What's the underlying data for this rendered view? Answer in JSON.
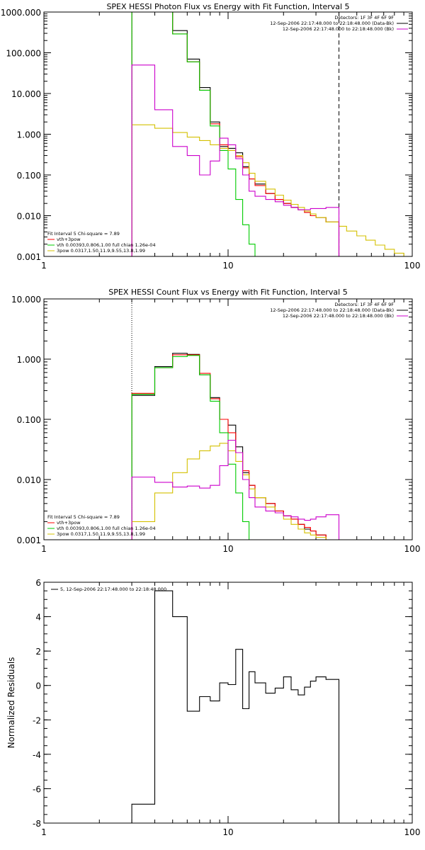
{
  "chart_data": [
    {
      "type": "line",
      "title": "SPEX HESSI Photon Flux vs Energy with Fit Function, Interval 5",
      "xlabel": "",
      "ylabel": "",
      "xscale": "log",
      "yscale": "log",
      "xlim": [
        1,
        100
      ],
      "ylim": [
        0.001,
        1000
      ],
      "x_ticks": [
        1,
        10,
        100
      ],
      "x_tick_labels": [
        "1",
        "10",
        "100"
      ],
      "y_ticks": [
        0.001,
        0.01,
        0.1,
        1,
        10,
        100,
        1000
      ],
      "y_tick_labels": [
        "0.001",
        "0.010",
        "0.100",
        "1.000",
        "10.000",
        "100.000",
        "1000.000"
      ],
      "vlines": [
        {
          "x": 3,
          "style": "dotted",
          "color": "#000000"
        },
        {
          "x": 40,
          "style": "dashed",
          "color": "#000000"
        }
      ],
      "legend_top_right": [
        {
          "label": "Detectors: 1F 3F 4F 6F 9F",
          "color": "#000000"
        },
        {
          "label": "12-Sep-2006 22:17:48.000 to 22:18:48.000 (Data-Bk)",
          "color": "#000000"
        },
        {
          "label": "12-Sep-2006 22:17:48.000 to 22:18:48.000 (Bk)",
          "color": "#cc00cc"
        }
      ],
      "legend_bottom_left": [
        {
          "label": "Fit Interval 5   Chi-square = 7.89",
          "color": "#000000"
        },
        {
          "label": "vth+3pow",
          "color": "#ff0000"
        },
        {
          "label": "vth 0.00393,0.806,1.00  full chian 1.26e-04",
          "color": "#00cc00"
        },
        {
          "label": "3pow 0.0317,1.50,11.9,9.55,13.8,1.99",
          "color": "#d4c000"
        }
      ],
      "series": [
        {
          "color": "#000000",
          "edges": [
            3,
            4,
            5,
            6,
            7,
            8,
            9,
            10,
            11,
            12,
            13,
            14,
            16,
            18,
            20,
            22,
            24,
            26,
            28,
            30,
            34,
            40
          ],
          "values": [
            1000,
            1000,
            350,
            70,
            14,
            2.0,
            0.5,
            0.45,
            0.35,
            0.16,
            0.08,
            0.06,
            0.035,
            0.025,
            0.02,
            0.016,
            0.014,
            0.012,
            0.01,
            0.009,
            0.007
          ]
        },
        {
          "color": "#ff0000",
          "edges": [
            3,
            4,
            5,
            6,
            7,
            8,
            9,
            10,
            11,
            12,
            13,
            14,
            16,
            18,
            20,
            22,
            24,
            26,
            28,
            30,
            34,
            40
          ],
          "values": [
            1000,
            1000,
            290,
            60,
            12,
            1.8,
            0.55,
            0.4,
            0.28,
            0.15,
            0.08,
            0.055,
            0.035,
            0.025,
            0.02,
            0.016,
            0.014,
            0.012,
            0.01,
            0.009,
            0.007
          ]
        },
        {
          "color": "#00cc00",
          "edges": [
            3,
            4,
            5,
            6,
            7,
            8,
            9,
            10,
            11,
            12,
            13,
            14,
            16
          ],
          "values": [
            1000,
            1000,
            290,
            60,
            12,
            1.6,
            0.4,
            0.14,
            0.025,
            0.006,
            0.002,
            0.001
          ]
        },
        {
          "color": "#d4c000",
          "edges": [
            3,
            4,
            5,
            6,
            7,
            8,
            9,
            10,
            11,
            12,
            13,
            14,
            16,
            18,
            20,
            22,
            24,
            26,
            28,
            30,
            34,
            40,
            44,
            50,
            56,
            63,
            71,
            80,
            90,
            100
          ],
          "values": [
            1.7,
            1.4,
            1.1,
            0.85,
            0.7,
            0.55,
            0.45,
            0.4,
            0.3,
            0.2,
            0.11,
            0.07,
            0.045,
            0.032,
            0.024,
            0.019,
            0.016,
            0.013,
            0.011,
            0.009,
            0.007,
            0.0055,
            0.0042,
            0.0032,
            0.0025,
            0.0019,
            0.0015,
            0.0012,
            0.001
          ]
        },
        {
          "color": "#cc00cc",
          "edges": [
            3,
            4,
            5,
            6,
            7,
            8,
            9,
            10,
            11,
            12,
            13,
            14,
            16,
            18,
            20,
            22,
            24,
            26,
            28,
            30,
            34,
            40
          ],
          "values": [
            50,
            4.0,
            0.5,
            0.3,
            0.1,
            0.22,
            0.8,
            0.55,
            0.25,
            0.1,
            0.04,
            0.03,
            0.025,
            0.022,
            0.018,
            0.016,
            0.014,
            0.014,
            0.015,
            0.015,
            0.016
          ]
        }
      ]
    },
    {
      "type": "line",
      "title": "SPEX HESSI Count Flux vs Energy with Fit Function, Interval 5",
      "xlabel": "",
      "ylabel": "",
      "xscale": "log",
      "yscale": "log",
      "xlim": [
        1,
        100
      ],
      "ylim": [
        0.001,
        10
      ],
      "x_ticks": [
        1,
        10,
        100
      ],
      "x_tick_labels": [
        "1",
        "10",
        "100"
      ],
      "y_ticks": [
        0.001,
        0.01,
        0.1,
        1,
        10
      ],
      "y_tick_labels": [
        "0.001",
        "0.010",
        "0.100",
        "1.000",
        "10.000"
      ],
      "vlines": [
        {
          "x": 3,
          "style": "dotted",
          "color": "#000000"
        }
      ],
      "legend_top_right": [
        {
          "label": "Detectors: 1F 3F 4F 6F 9F",
          "color": "#000000"
        },
        {
          "label": "12-Sep-2006 22:17:48.000 to 22:18:48.000 (Data-Bk)",
          "color": "#000000"
        },
        {
          "label": "12-Sep-2006 22:17:48.000 to 22:18:48.000 (Bk)",
          "color": "#cc00cc"
        }
      ],
      "legend_bottom_left": [
        {
          "label": "Fit Interval 5   Chi-square = 7.89",
          "color": "#000000"
        },
        {
          "label": "vth+3pow",
          "color": "#ff0000"
        },
        {
          "label": "vth 0.00393,0.806,1.00  full chian 1.26e-04",
          "color": "#00cc00"
        },
        {
          "label": "3pow 0.0317,1.50,11.9,9.55,13.8,1.99",
          "color": "#d4c000"
        }
      ],
      "series": [
        {
          "color": "#000000",
          "edges": [
            3,
            4,
            5,
            6,
            7,
            8,
            9,
            10,
            11,
            12,
            13,
            14,
            16,
            18,
            20,
            22,
            24,
            26,
            28,
            30,
            34,
            40
          ],
          "values": [
            0.25,
            0.75,
            1.25,
            1.2,
            0.55,
            0.23,
            0.1,
            0.08,
            0.035,
            0.013,
            0.008,
            0.005,
            0.004,
            0.003,
            0.0025,
            0.0022,
            0.0018,
            0.0015,
            0.0014,
            0.0012,
            0.001
          ]
        },
        {
          "color": "#ff0000",
          "edges": [
            3,
            4,
            5,
            6,
            7,
            8,
            9,
            10,
            11,
            12,
            13,
            14,
            16,
            18,
            20,
            22,
            24,
            26,
            28,
            30,
            34,
            40
          ],
          "values": [
            0.27,
            0.72,
            1.18,
            1.18,
            0.58,
            0.22,
            0.1,
            0.06,
            0.028,
            0.014,
            0.008,
            0.005,
            0.004,
            0.003,
            0.0025,
            0.0022,
            0.0018,
            0.0016,
            0.0014,
            0.0012,
            0.001
          ]
        },
        {
          "color": "#00cc00",
          "edges": [
            3,
            4,
            5,
            6,
            7,
            8,
            9,
            10,
            11,
            12,
            13,
            14
          ],
          "values": [
            0.26,
            0.72,
            1.1,
            1.15,
            0.55,
            0.2,
            0.06,
            0.018,
            0.006,
            0.002,
            0.001
          ]
        },
        {
          "color": "#d4c000",
          "edges": [
            3,
            4,
            5,
            6,
            7,
            8,
            9,
            10,
            11,
            12,
            13,
            14,
            16,
            18,
            20,
            22,
            24,
            26,
            28,
            30,
            34,
            40
          ],
          "values": [
            0.002,
            0.006,
            0.013,
            0.022,
            0.03,
            0.036,
            0.04,
            0.03,
            0.02,
            0.012,
            0.007,
            0.005,
            0.0035,
            0.0028,
            0.0022,
            0.0018,
            0.0015,
            0.0013,
            0.0012,
            0.0011,
            0.001
          ]
        },
        {
          "color": "#cc00cc",
          "edges": [
            3,
            4,
            5,
            6,
            7,
            8,
            9,
            10,
            11,
            12,
            13,
            14,
            16,
            18,
            20,
            22,
            24,
            26,
            28,
            30,
            34,
            40
          ],
          "values": [
            0.011,
            0.009,
            0.0075,
            0.0078,
            0.0072,
            0.008,
            0.017,
            0.045,
            0.028,
            0.01,
            0.005,
            0.0035,
            0.003,
            0.0028,
            0.0025,
            0.0024,
            0.0022,
            0.0021,
            0.0022,
            0.0024,
            0.0026
          ]
        }
      ]
    },
    {
      "type": "line",
      "title": "",
      "xlabel": "",
      "ylabel": "Normalized Residuals",
      "xscale": "log",
      "yscale": "linear",
      "xlim": [
        1,
        100
      ],
      "ylim": [
        -8,
        6
      ],
      "x_ticks": [
        1,
        10,
        100
      ],
      "x_tick_labels": [
        "1",
        "10",
        "100"
      ],
      "y_ticks": [
        -8,
        -6,
        -4,
        -2,
        0,
        2,
        4,
        6
      ],
      "y_tick_labels": [
        "-8",
        "-6",
        "-4",
        "-2",
        "0",
        "2",
        "4",
        "6"
      ],
      "vlines": [],
      "legend_top_left": [
        {
          "label": "5, 12-Sep-2006 22:17:48.000 to 22:18:48.000",
          "color": "#000000"
        }
      ],
      "series": [
        {
          "color": "#000000",
          "edges": [
            3,
            4,
            5,
            6,
            7,
            8,
            9,
            10,
            11,
            12,
            13,
            14,
            16,
            18,
            20,
            22,
            24,
            26,
            28,
            30,
            34,
            40
          ],
          "values": [
            -6.9,
            5.5,
            4.0,
            -1.5,
            -0.65,
            -0.9,
            0.15,
            0.05,
            2.1,
            -1.35,
            0.8,
            0.15,
            -0.45,
            -0.15,
            0.5,
            -0.25,
            -0.55,
            -0.1,
            0.25,
            0.5,
            0.35
          ]
        }
      ]
    }
  ]
}
